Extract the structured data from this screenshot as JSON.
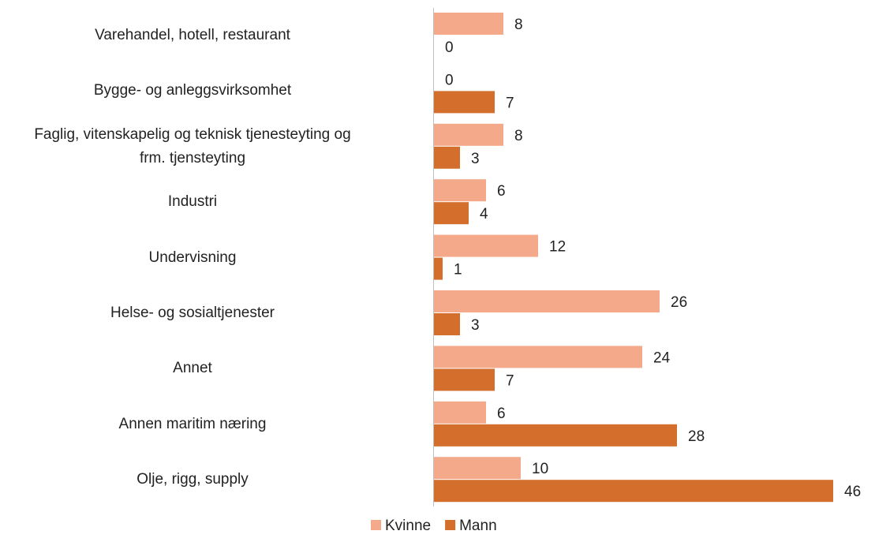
{
  "chart_data": {
    "type": "bar",
    "orientation": "horizontal",
    "categories": [
      "Varehandel, hotell, restaurant",
      "Bygge- og anleggsvirksomhet",
      "Faglig, vitenskapelig og teknisk tjenesteyting og\nfrm. tjensteyting",
      "Industri",
      "Undervisning",
      "Helse- og sosialtjenester",
      "Annet",
      "Annen maritim næring",
      "Olje, rigg, supply"
    ],
    "series": [
      {
        "name": "Kvinne",
        "color": "#f4a98a",
        "values": [
          8,
          0,
          8,
          6,
          12,
          26,
          24,
          6,
          10
        ]
      },
      {
        "name": "Mann",
        "color": "#d36e2c",
        "values": [
          0,
          7,
          3,
          4,
          1,
          3,
          7,
          28,
          46
        ]
      }
    ],
    "legend": "bottom"
  }
}
